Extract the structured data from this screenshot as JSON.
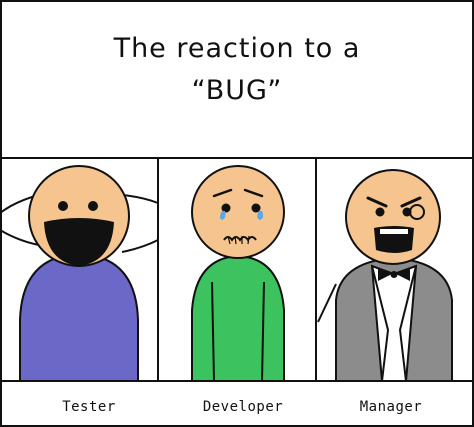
{
  "title": {
    "line1": "The reaction to a",
    "line2": "“BUG”"
  },
  "panels": [
    {
      "label": "Tester",
      "shirt_color": "#6b68c8",
      "icon": "laughing-face-icon"
    },
    {
      "label": "Developer",
      "shirt_color": "#3cc25e",
      "icon": "crying-face-icon"
    },
    {
      "label": "Manager",
      "shirt_color": "#8c8c8c",
      "icon": "angry-face-icon"
    }
  ],
  "colors": {
    "skin": "#f6c48e",
    "tear": "#5aa9e6",
    "line": "#111111"
  }
}
